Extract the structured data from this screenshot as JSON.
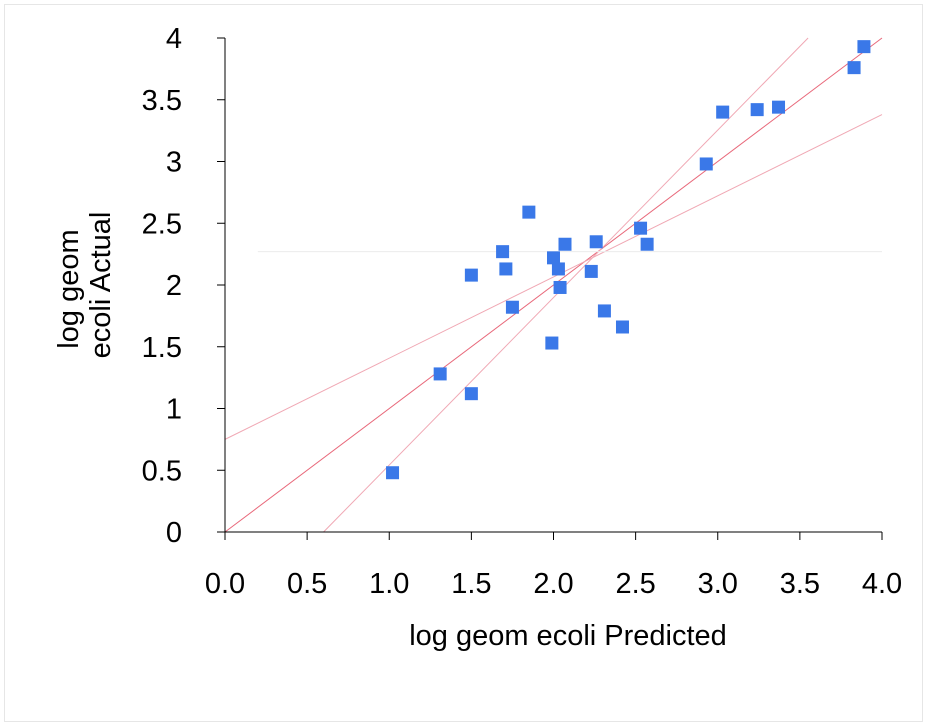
{
  "chart_data": {
    "type": "scatter",
    "title": "",
    "xlabel": "log geom ecoli Predicted",
    "ylabel_lines": [
      "log geom",
      "ecoli Actual"
    ],
    "xlim": [
      0,
      4
    ],
    "ylim": [
      0,
      4
    ],
    "x_ticks": [
      "0.0",
      "0.5",
      "1.0",
      "1.5",
      "2.0",
      "2.5",
      "3.0",
      "3.5",
      "4.0"
    ],
    "y_ticks": [
      "0",
      "0.5",
      "1",
      "1.5",
      "2",
      "2.5",
      "3",
      "3.5",
      "4"
    ],
    "grid": false,
    "legend": "none",
    "marker_color": "#3a78e8",
    "points": [
      {
        "x": 1.02,
        "y": 0.48
      },
      {
        "x": 1.31,
        "y": 1.28
      },
      {
        "x": 1.5,
        "y": 1.12
      },
      {
        "x": 1.5,
        "y": 2.08
      },
      {
        "x": 1.69,
        "y": 2.27
      },
      {
        "x": 1.71,
        "y": 2.13
      },
      {
        "x": 1.75,
        "y": 1.82
      },
      {
        "x": 1.85,
        "y": 2.59
      },
      {
        "x": 1.99,
        "y": 1.53
      },
      {
        "x": 2.0,
        "y": 2.22
      },
      {
        "x": 2.03,
        "y": 2.13
      },
      {
        "x": 2.04,
        "y": 1.98
      },
      {
        "x": 2.07,
        "y": 2.33
      },
      {
        "x": 2.23,
        "y": 2.11
      },
      {
        "x": 2.26,
        "y": 2.35
      },
      {
        "x": 2.31,
        "y": 1.79
      },
      {
        "x": 2.42,
        "y": 1.66
      },
      {
        "x": 2.53,
        "y": 2.46
      },
      {
        "x": 2.57,
        "y": 2.33
      },
      {
        "x": 2.93,
        "y": 2.98
      },
      {
        "x": 3.03,
        "y": 3.4
      },
      {
        "x": 3.24,
        "y": 3.42
      },
      {
        "x": 3.37,
        "y": 3.44
      },
      {
        "x": 3.83,
        "y": 3.76
      },
      {
        "x": 3.89,
        "y": 3.93
      }
    ],
    "reference_lines": [
      {
        "name": "fit",
        "color": "#e8687a",
        "x1": 0,
        "y1": 0,
        "x2": 4,
        "y2": 4
      },
      {
        "name": "upper-band",
        "color": "#f0a8b4",
        "x1": 0.6,
        "y1": 0,
        "x2": 3.55,
        "y2": 4
      },
      {
        "name": "lower-band",
        "color": "#f0a8b4",
        "x1": 0,
        "y1": 0.75,
        "x2": 4,
        "y2": 3.38
      },
      {
        "name": "mean-line",
        "color": "#ececec",
        "x1": 0.2,
        "y1": 2.27,
        "x2": 4,
        "y2": 2.27
      }
    ]
  }
}
